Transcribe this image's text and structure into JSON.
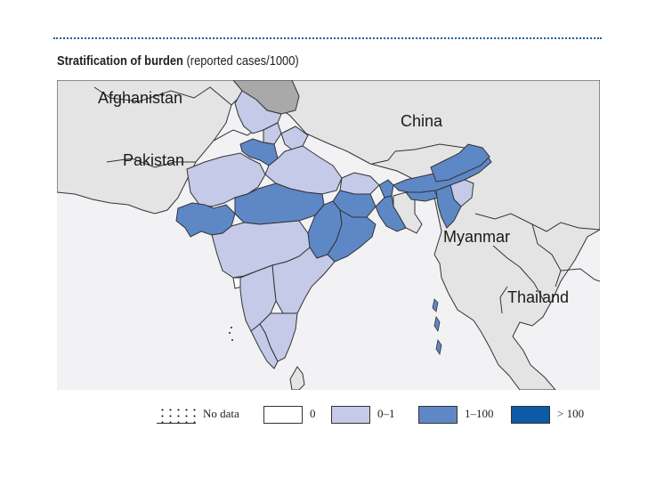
{
  "title": {
    "bold": "Stratification of burden",
    "normal": " (reported cases/1000)"
  },
  "colors": {
    "water": "#f2f2f4",
    "neighbors": "#e4e4e4",
    "border": "#333333",
    "no_data_region": "#a9a9a9",
    "class_0": "#ffffff",
    "class_0_1": "#c4cae7",
    "class_1_100": "#5e87c6",
    "class_gt_100": "#0b5ba6",
    "rule": "#1f5f99"
  },
  "map": {
    "labels": {
      "afghanistan": "Afghanistan",
      "pakistan": "Pakistan",
      "china": "China",
      "myanmar": "Myanmar",
      "thailand": "Thailand"
    }
  },
  "legend": {
    "no_data": "No data",
    "zero": "0",
    "low": "0–1",
    "mid": "1–100",
    "high": "> 100"
  }
}
